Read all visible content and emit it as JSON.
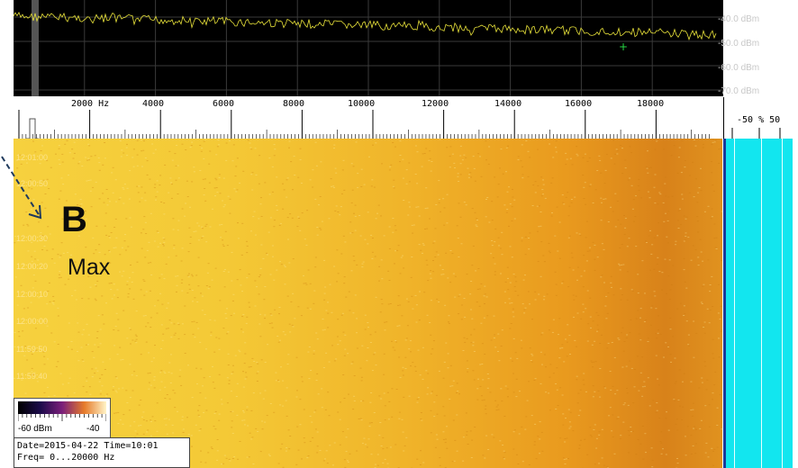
{
  "spectrum": {
    "db_labels": [
      "-40.0 dBm",
      "-50.0 dBm",
      "-60.0 dBm",
      "-70.0 dBm"
    ],
    "trace_color": "#e8e23a"
  },
  "ruler": {
    "freq_labels": [
      "2000 Hz",
      "4000",
      "6000",
      "8000",
      "10000",
      "12000",
      "14000",
      "16000",
      "18000"
    ]
  },
  "side_scale": {
    "label": "-50 % 50"
  },
  "waterfall": {
    "time_labels": [
      "12:01:00",
      "12:00:50",
      "12:00:30",
      "12:00:20",
      "12:00:10",
      "12:00:00",
      "11:59:50",
      "11:59:40"
    ],
    "colors": {
      "low": "#f6d13e",
      "high": "#d8821a",
      "side": "#12e6ef"
    }
  },
  "annotation": {
    "letter": "B",
    "text": "Max"
  },
  "legend": {
    "min": "-60 dBm",
    "max": "-40"
  },
  "info": {
    "line1": "Date=2015-04-22 Time=10:01",
    "line2": "Freq= 0...20000 Hz"
  }
}
